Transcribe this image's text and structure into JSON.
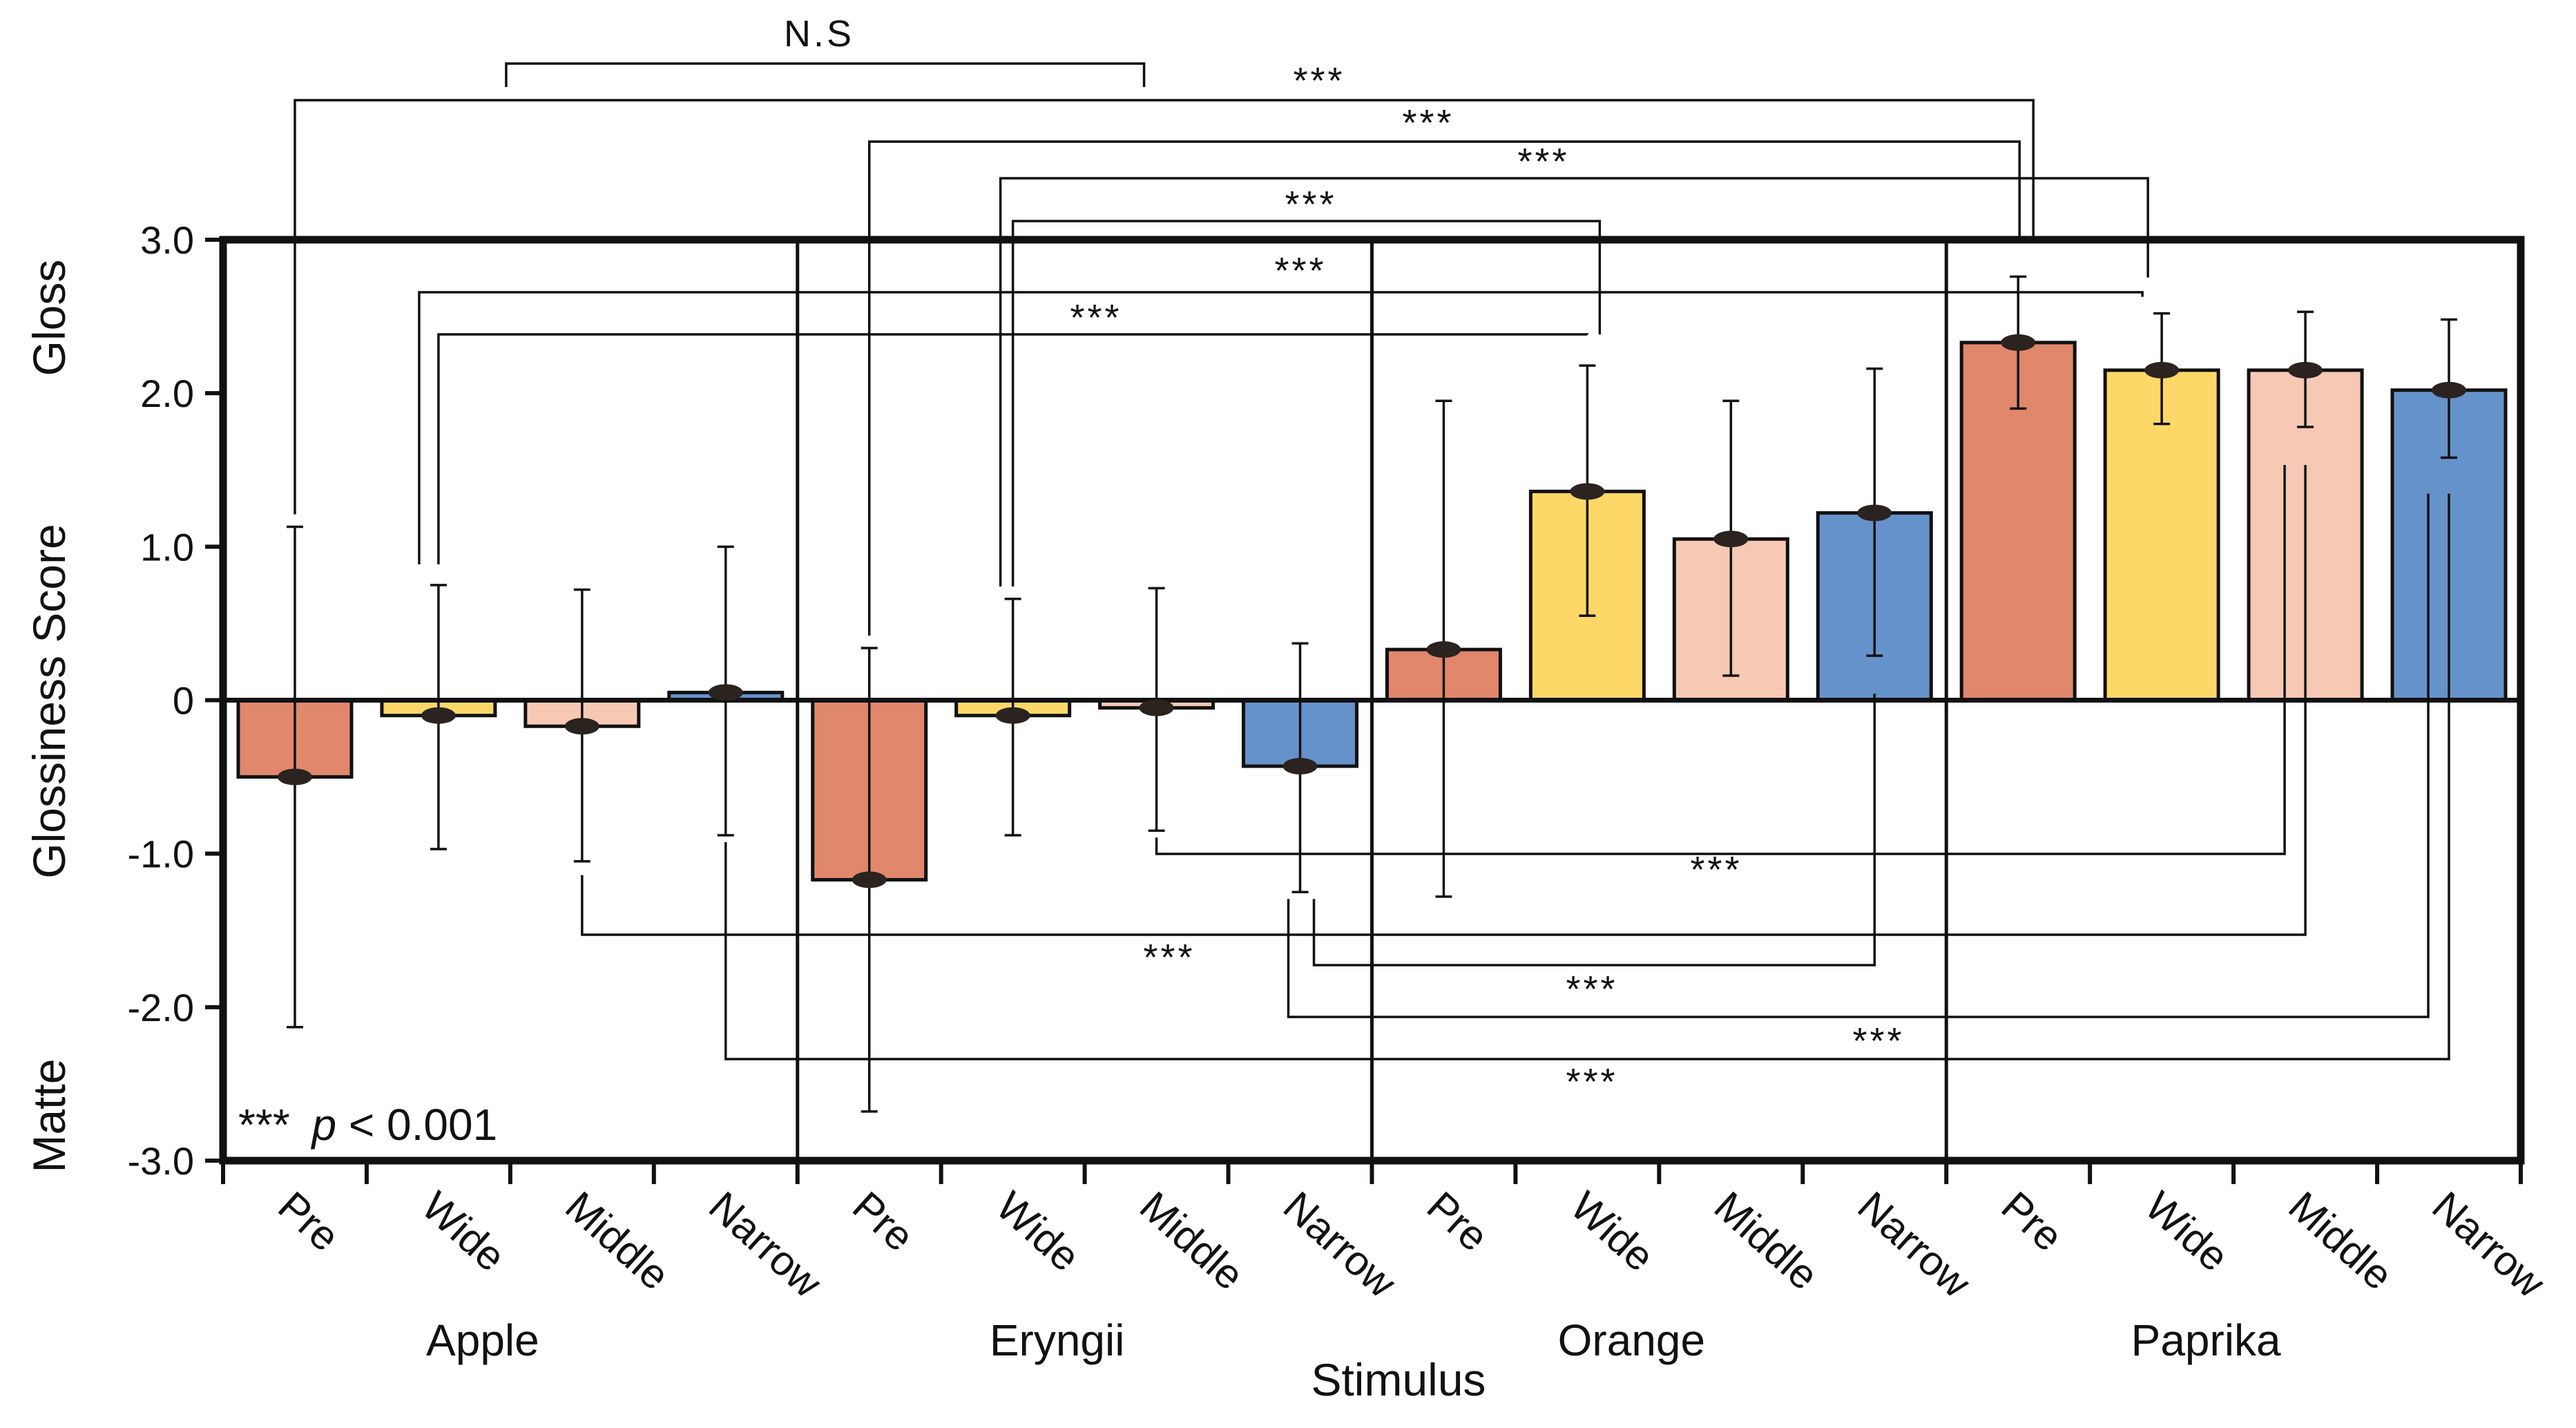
{
  "chart_data": {
    "type": "bar",
    "ylabel": "Glossiness Score",
    "ylabel_top": "Gloss",
    "ylabel_bottom": "Matte",
    "xlabel": "Stimulus",
    "ylim": [
      -3.0,
      3.0
    ],
    "yticks": [
      {
        "value": 3.0,
        "label": "3.0"
      },
      {
        "value": 2.0,
        "label": "2.0"
      },
      {
        "value": 1.0,
        "label": "1.0"
      },
      {
        "value": 0.0,
        "label": "0"
      },
      {
        "value": -1.0,
        "label": "-1.0"
      },
      {
        "value": -2.0,
        "label": "-2.0"
      },
      {
        "value": -3.0,
        "label": "-3.0"
      }
    ],
    "groups": [
      "Apple",
      "Eryngii",
      "Orange",
      "Paprika"
    ],
    "conditions": [
      "Pre",
      "Wide",
      "Middle",
      "Narrow"
    ],
    "condition_colors": {
      "Pre": "#e0876c",
      "Wide": "#fdd868",
      "Middle": "#f7c8b4",
      "Narrow": "#6692cb"
    },
    "bars": [
      {
        "group": "Apple",
        "condition": "Pre",
        "value": -0.5,
        "err_low": -2.13,
        "err_high": 1.13
      },
      {
        "group": "Apple",
        "condition": "Wide",
        "value": -0.1,
        "err_low": -0.97,
        "err_high": 0.75
      },
      {
        "group": "Apple",
        "condition": "Middle",
        "value": -0.17,
        "err_low": -1.05,
        "err_high": 0.72
      },
      {
        "group": "Apple",
        "condition": "Narrow",
        "value": 0.05,
        "err_low": -0.88,
        "err_high": 1.0
      },
      {
        "group": "Eryngii",
        "condition": "Pre",
        "value": -1.17,
        "err_low": -2.68,
        "err_high": 0.34
      },
      {
        "group": "Eryngii",
        "condition": "Wide",
        "value": -0.1,
        "err_low": -0.88,
        "err_high": 0.66
      },
      {
        "group": "Eryngii",
        "condition": "Middle",
        "value": -0.05,
        "err_low": -0.85,
        "err_high": 0.73
      },
      {
        "group": "Eryngii",
        "condition": "Narrow",
        "value": -0.43,
        "err_low": -1.25,
        "err_high": 0.37
      },
      {
        "group": "Orange",
        "condition": "Pre",
        "value": 0.33,
        "err_low": -1.28,
        "err_high": 1.95
      },
      {
        "group": "Orange",
        "condition": "Wide",
        "value": 1.36,
        "err_low": 0.55,
        "err_high": 2.18
      },
      {
        "group": "Orange",
        "condition": "Middle",
        "value": 1.05,
        "err_low": 0.16,
        "err_high": 1.95
      },
      {
        "group": "Orange",
        "condition": "Narrow",
        "value": 1.22,
        "err_low": 0.29,
        "err_high": 2.16
      },
      {
        "group": "Paprika",
        "condition": "Pre",
        "value": 2.33,
        "err_low": 1.9,
        "err_high": 2.76
      },
      {
        "group": "Paprika",
        "condition": "Wide",
        "value": 2.15,
        "err_low": 1.8,
        "err_high": 2.52
      },
      {
        "group": "Paprika",
        "condition": "Middle",
        "value": 2.15,
        "err_low": 1.78,
        "err_high": 2.53
      },
      {
        "group": "Paprika",
        "condition": "Narrow",
        "value": 2.02,
        "err_low": 1.58,
        "err_high": 2.48
      }
    ],
    "significance_brackets": [
      {
        "from": "Apple Wide",
        "to": "Eryngii Middle",
        "label": "N.S"
      },
      {
        "from": "Apple Pre",
        "to": "Paprika Pre",
        "label": "***"
      },
      {
        "from": "Eryngii Pre",
        "to": "Paprika Pre",
        "label": "***"
      },
      {
        "from": "Eryngii Wide",
        "to": "Paprika Wide",
        "label": "***"
      },
      {
        "from": "Eryngii Wide",
        "to": "Orange Wide",
        "label": "***"
      },
      {
        "from": "Apple Wide",
        "to": "Paprika Wide",
        "label": "***"
      },
      {
        "from": "Apple Wide",
        "to": "Orange Wide",
        "label": "***"
      },
      {
        "from": "Eryngii Middle",
        "to": "Paprika Middle",
        "label": "***"
      },
      {
        "from": "Apple Middle",
        "to": "Paprika Middle",
        "label": "***"
      },
      {
        "from": "Eryngii Narrow",
        "to": "Orange Narrow",
        "label": "***"
      },
      {
        "from": "Eryngii Narrow",
        "to": "Paprika Narrow",
        "label": "***"
      },
      {
        "from": "Apple Narrow",
        "to": "Paprika Narrow",
        "label": "***"
      }
    ],
    "legend_note": {
      "stars": "***",
      "p": "p",
      "rest": " < 0.001"
    }
  }
}
